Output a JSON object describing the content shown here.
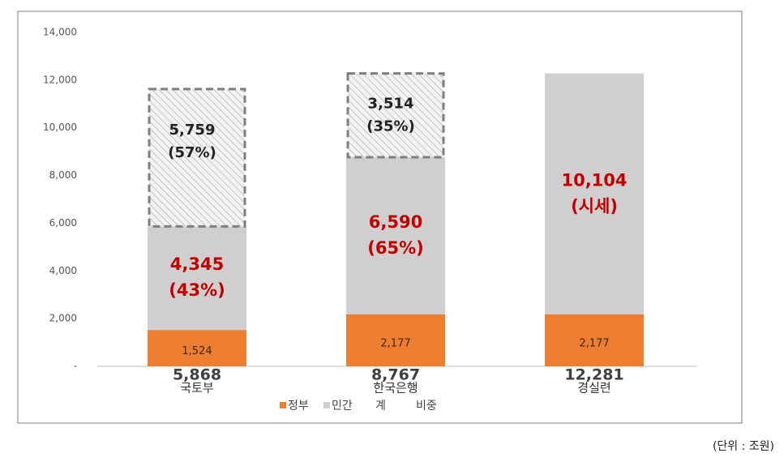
{
  "chart_data": {
    "type": "stacked_bar",
    "categories": [
      "국토부",
      "한국은행",
      "경실련"
    ],
    "series": [
      {
        "name": "정부",
        "color": "#ed7d31",
        "values": [
          1524,
          2177,
          2177
        ],
        "value_labels": [
          "1,524",
          "2,177",
          "2,177"
        ]
      },
      {
        "name": "민간",
        "color": "#d0cece",
        "values": [
          4345,
          6590,
          10104
        ],
        "value_labels": [
          "4,345",
          "6,590",
          "10,104"
        ],
        "share_labels": [
          "(43%)",
          "(65%)",
          "(시세)"
        ]
      }
    ],
    "totals": {
      "values": [
        5868,
        8767,
        12281
      ],
      "value_labels": [
        "5,868",
        "8,767",
        "12,281"
      ]
    },
    "dashed_boxes": {
      "values": [
        5759,
        3514,
        null
      ],
      "value_labels": [
        "5,759",
        "3,514",
        null
      ],
      "share_labels": [
        "(57%)",
        "(35%)",
        null
      ]
    },
    "legend_extra": [
      "계",
      "비중"
    ],
    "ylim": [
      0,
      14000
    ],
    "yticks": [
      {
        "value": 0,
        "label": "-"
      },
      {
        "value": 2000,
        "label": "2,000"
      },
      {
        "value": 4000,
        "label": "4,000"
      },
      {
        "value": 6000,
        "label": "6,000"
      },
      {
        "value": 8000,
        "label": "8,000"
      },
      {
        "value": 10000,
        "label": "10,000"
      },
      {
        "value": 12000,
        "label": "12,000"
      },
      {
        "value": 14000,
        "label": "14,000"
      }
    ],
    "note": "(단위 : 조원)"
  }
}
